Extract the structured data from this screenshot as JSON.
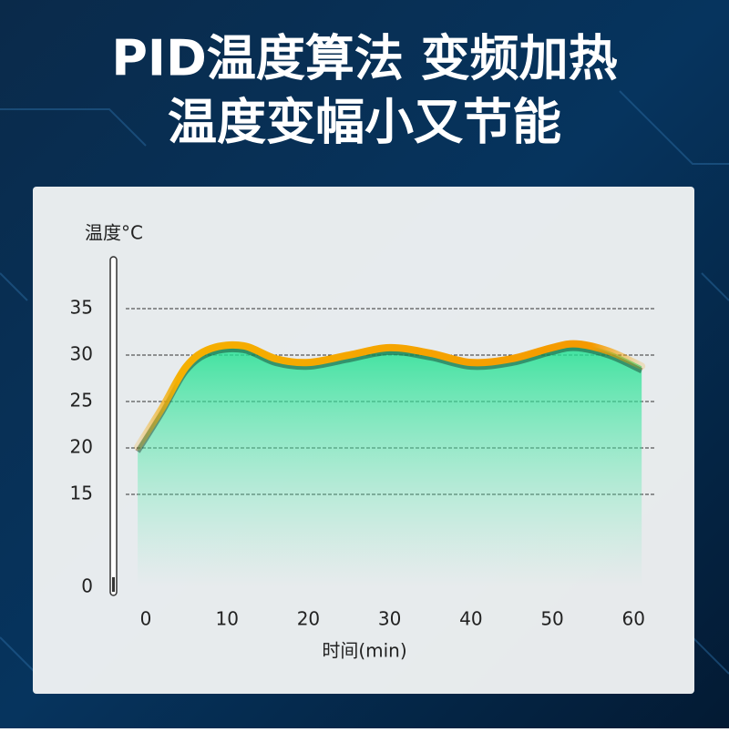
{
  "chart_data": {
    "type": "line",
    "title_lines": [
      "PID温度算法  变频加热",
      "温度变幅小又节能"
    ],
    "y_label": "温度°C",
    "x_label": "时间(min)",
    "x": [
      -1,
      2,
      5,
      8,
      12,
      16,
      20,
      25,
      30,
      35,
      40,
      45,
      50,
      53,
      57,
      61
    ],
    "series": [
      {
        "color": "#f5a400",
        "values": [
          20.1,
          24.3,
          28.8,
          30.7,
          31,
          29.6,
          29.2,
          30,
          30.8,
          30.2,
          29.2,
          29.6,
          30.8,
          31.2,
          30.4,
          28.8
        ]
      }
    ],
    "xlim": [
      -2,
      63
    ],
    "xticks": [
      0,
      10,
      20,
      30,
      40,
      50,
      60
    ],
    "ylim": [
      0,
      35
    ],
    "y_break": [
      0,
      10
    ],
    "yticks": [
      0,
      15,
      20,
      25,
      30,
      35
    ],
    "grid": true
  }
}
